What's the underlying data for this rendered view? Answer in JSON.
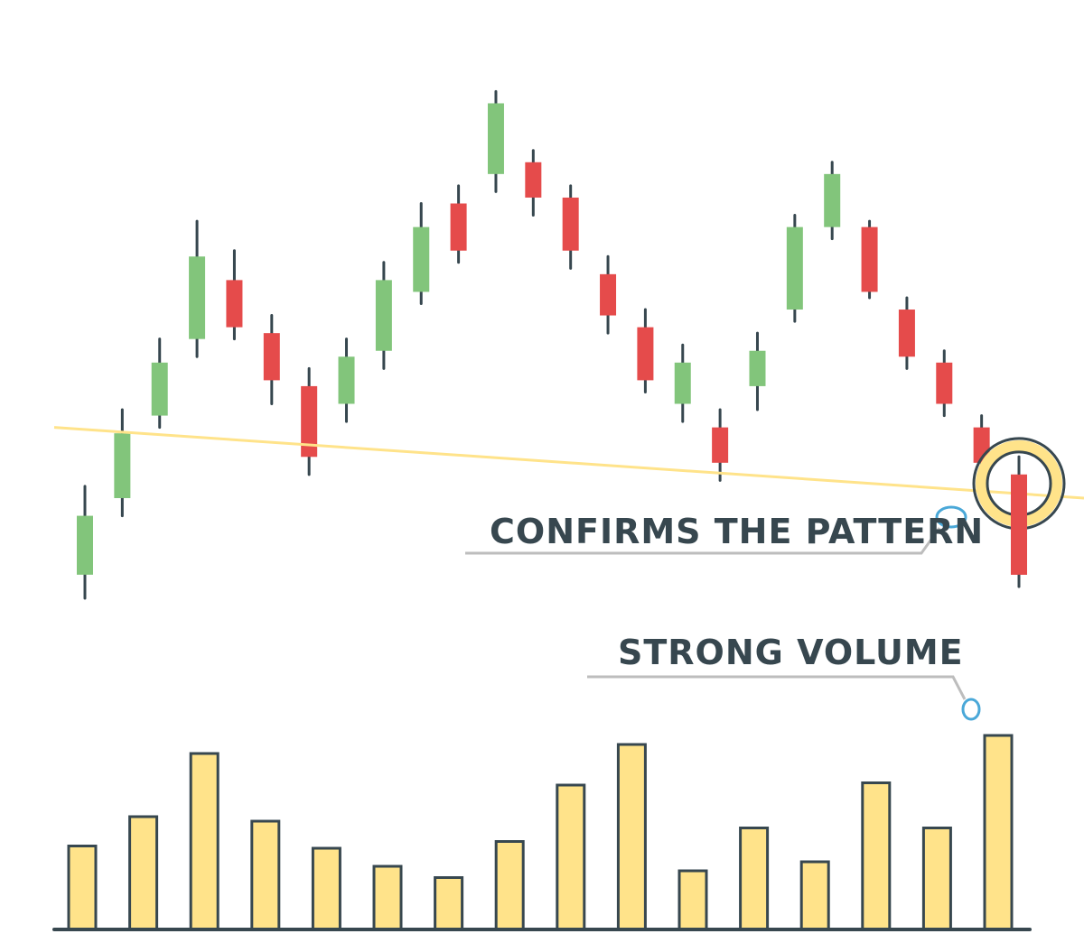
{
  "chart_data": [
    {
      "type": "candlestick",
      "pattern": "head-and-shoulders",
      "grid": false,
      "colors": {
        "up": "#82c57b",
        "down": "#e54b4b",
        "wick": "#37474f",
        "neckline": "#ffe38a",
        "annotation_line": "#bdbdbd",
        "annotation_dot": "#4aa8d8",
        "highlight_ring": "#ffe38a",
        "highlight_outline": "#37474f"
      },
      "ylim": [
        0,
        100
      ],
      "candles": [
        {
          "dir": "up",
          "open": 4,
          "close": 14,
          "high": 19,
          "low": 0
        },
        {
          "dir": "up",
          "open": 17,
          "close": 28,
          "high": 32,
          "low": 14
        },
        {
          "dir": "up",
          "open": 31,
          "close": 40,
          "high": 44,
          "low": 29
        },
        {
          "dir": "up",
          "open": 44,
          "close": 58,
          "high": 64,
          "low": 41
        },
        {
          "dir": "down",
          "open": 54,
          "close": 46,
          "high": 59,
          "low": 44
        },
        {
          "dir": "down",
          "open": 45,
          "close": 37,
          "high": 48,
          "low": 33
        },
        {
          "dir": "down",
          "open": 36,
          "close": 24,
          "high": 39,
          "low": 21
        },
        {
          "dir": "up",
          "open": 33,
          "close": 41,
          "high": 44,
          "low": 30
        },
        {
          "dir": "up",
          "open": 42,
          "close": 54,
          "high": 57,
          "low": 39
        },
        {
          "dir": "up",
          "open": 52,
          "close": 63,
          "high": 67,
          "low": 50
        },
        {
          "dir": "down",
          "open": 67,
          "close": 59,
          "high": 70,
          "low": 57
        },
        {
          "dir": "up",
          "open": 72,
          "close": 84,
          "high": 86,
          "low": 69
        },
        {
          "dir": "down",
          "open": 74,
          "close": 68,
          "high": 76,
          "low": 65
        },
        {
          "dir": "down",
          "open": 68,
          "close": 59,
          "high": 70,
          "low": 56
        },
        {
          "dir": "down",
          "open": 55,
          "close": 48,
          "high": 58,
          "low": 45
        },
        {
          "dir": "down",
          "open": 46,
          "close": 37,
          "high": 49,
          "low": 35
        },
        {
          "dir": "up",
          "open": 33,
          "close": 40,
          "high": 43,
          "low": 30
        },
        {
          "dir": "down",
          "open": 29,
          "close": 23,
          "high": 32,
          "low": 20
        },
        {
          "dir": "up",
          "open": 36,
          "close": 42,
          "high": 45,
          "low": 32
        },
        {
          "dir": "up",
          "open": 49,
          "close": 63,
          "high": 65,
          "low": 47
        },
        {
          "dir": "up",
          "open": 63,
          "close": 72,
          "high": 74,
          "low": 61
        },
        {
          "dir": "down",
          "open": 63,
          "close": 52,
          "high": 64,
          "low": 51
        },
        {
          "dir": "down",
          "open": 49,
          "close": 41,
          "high": 51,
          "low": 39
        },
        {
          "dir": "down",
          "open": 40,
          "close": 33,
          "high": 42,
          "low": 31
        },
        {
          "dir": "down",
          "open": 29,
          "close": 23,
          "high": 31,
          "low": 20
        },
        {
          "dir": "down",
          "open": 21,
          "close": 4,
          "high": 24,
          "low": 2
        }
      ],
      "neckline": {
        "from": {
          "index": 0,
          "value": 29
        },
        "to": {
          "index": 26,
          "value": 17
        }
      },
      "highlight_index": 25
    },
    {
      "type": "bar",
      "values": [
        37,
        50,
        78,
        48,
        36,
        28,
        23,
        39,
        64,
        82,
        26,
        45,
        30,
        65,
        45,
        86
      ],
      "ylim": [
        0,
        100
      ],
      "color": "#ffe38a",
      "outline": "#37474f"
    }
  ],
  "annotations": {
    "confirms": "CONFIRMS THE PATTERN",
    "volume": "STRONG VOLUME"
  }
}
